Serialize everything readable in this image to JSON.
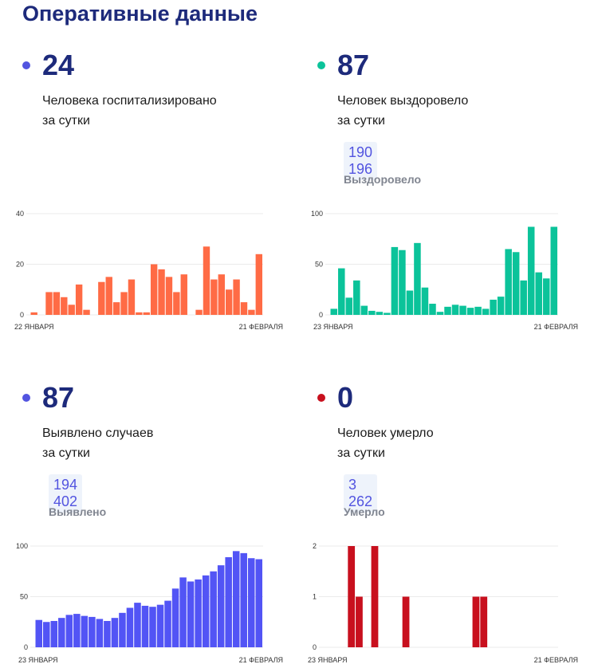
{
  "title": "Оперативные данные",
  "stats": [
    {
      "value": "24",
      "desc1": "Человека госпитализировано",
      "desc2": "за сутки",
      "dot_color": "#5254e0"
    },
    {
      "value": "87",
      "desc1": "Человек выздоровело",
      "desc2": "за сутки",
      "total": "190 196",
      "total_label": "Выздоровело",
      "dot_color": "#0bc39a"
    },
    {
      "value": "87",
      "desc1": "Выявлено случаев",
      "desc2": "за сутки",
      "total": "194 402",
      "total_label": "Выявлено",
      "dot_color": "#5254e0"
    },
    {
      "value": "0",
      "desc1": "Человек умерло",
      "desc2": "за сутки",
      "total": "3 262",
      "total_label": "Умерло",
      "dot_color": "#c8101e"
    }
  ],
  "chart_data": [
    {
      "type": "bar",
      "name": "hospitalized",
      "color": "#ff6b45",
      "ylim": [
        0,
        40
      ],
      "yticks": [
        "0",
        "20",
        "40"
      ],
      "xstart": "22 ЯНВАРЯ",
      "xend": "21 ФЕВРАЛЯ",
      "values": [
        1,
        0,
        9,
        9,
        7,
        4,
        12,
        2,
        0,
        13,
        15,
        5,
        9,
        14,
        1,
        1,
        20,
        18,
        15,
        9,
        16,
        0,
        2,
        27,
        14,
        16,
        10,
        14,
        5,
        2,
        24
      ]
    },
    {
      "type": "bar",
      "name": "recovered",
      "color": "#0bc39a",
      "ylim": [
        0,
        100
      ],
      "yticks": [
        "0",
        "50",
        "100"
      ],
      "xstart": "23 ЯНВАРЯ",
      "xend": "21 ФЕВРАЛЯ",
      "values": [
        6,
        46,
        17,
        34,
        9,
        4,
        3,
        2,
        67,
        64,
        24,
        71,
        27,
        11,
        3,
        8,
        10,
        9,
        7,
        8,
        6,
        15,
        18,
        65,
        62,
        34,
        87,
        42,
        36,
        87
      ]
    },
    {
      "type": "bar",
      "name": "cases",
      "color": "#5254f5",
      "ylim": [
        0,
        100
      ],
      "yticks": [
        "0",
        "50",
        "100"
      ],
      "xstart": "23 ЯНВАРЯ",
      "xend": "21 ФЕВРАЛЯ",
      "values": [
        27,
        25,
        26,
        29,
        32,
        33,
        31,
        30,
        28,
        26,
        29,
        34,
        39,
        44,
        41,
        40,
        42,
        46,
        58,
        69,
        65,
        67,
        71,
        75,
        81,
        89,
        95,
        93,
        88,
        87
      ]
    },
    {
      "type": "bar",
      "name": "deaths",
      "color": "#c8101e",
      "ylim": [
        0,
        2
      ],
      "yticks": [
        "0",
        "1",
        "2"
      ],
      "xstart": "23 ЯНВАРЯ",
      "xend": "21 ФЕВРАЛЯ",
      "values": [
        0,
        0,
        0,
        2,
        1,
        0,
        2,
        0,
        0,
        0,
        1,
        0,
        0,
        0,
        0,
        0,
        0,
        0,
        0,
        1,
        1,
        0,
        0,
        0,
        0,
        0,
        0,
        0,
        0,
        0
      ]
    }
  ]
}
